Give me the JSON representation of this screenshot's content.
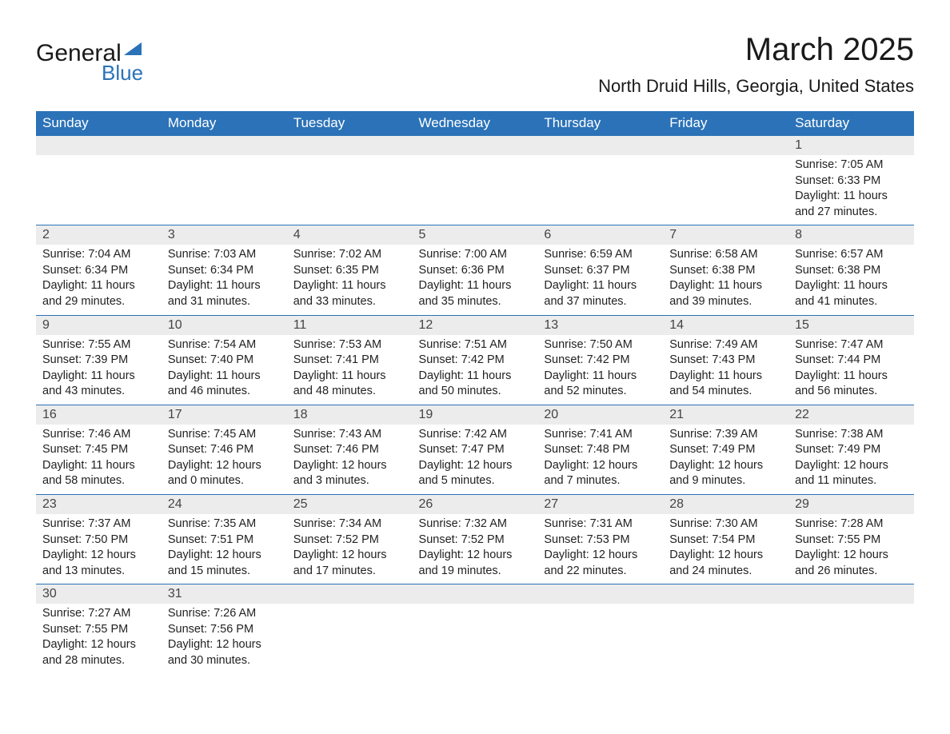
{
  "logo": {
    "text1": "General",
    "text2": "Blue"
  },
  "title": {
    "month": "March 2025",
    "location": "North Druid Hills, Georgia, United States"
  },
  "colors": {
    "header_bg": "#2b72b8",
    "header_text": "#ffffff",
    "daynum_bg": "#ececec",
    "border": "#2b72b8",
    "body_text": "#222222"
  },
  "days_of_week": [
    "Sunday",
    "Monday",
    "Tuesday",
    "Wednesday",
    "Thursday",
    "Friday",
    "Saturday"
  ],
  "weeks": [
    [
      null,
      null,
      null,
      null,
      null,
      null,
      {
        "day": "1",
        "sunrise": "7:05 AM",
        "sunset": "6:33 PM",
        "daylight": "11 hours and 27 minutes."
      }
    ],
    [
      {
        "day": "2",
        "sunrise": "7:04 AM",
        "sunset": "6:34 PM",
        "daylight": "11 hours and 29 minutes."
      },
      {
        "day": "3",
        "sunrise": "7:03 AM",
        "sunset": "6:34 PM",
        "daylight": "11 hours and 31 minutes."
      },
      {
        "day": "4",
        "sunrise": "7:02 AM",
        "sunset": "6:35 PM",
        "daylight": "11 hours and 33 minutes."
      },
      {
        "day": "5",
        "sunrise": "7:00 AM",
        "sunset": "6:36 PM",
        "daylight": "11 hours and 35 minutes."
      },
      {
        "day": "6",
        "sunrise": "6:59 AM",
        "sunset": "6:37 PM",
        "daylight": "11 hours and 37 minutes."
      },
      {
        "day": "7",
        "sunrise": "6:58 AM",
        "sunset": "6:38 PM",
        "daylight": "11 hours and 39 minutes."
      },
      {
        "day": "8",
        "sunrise": "6:57 AM",
        "sunset": "6:38 PM",
        "daylight": "11 hours and 41 minutes."
      }
    ],
    [
      {
        "day": "9",
        "sunrise": "7:55 AM",
        "sunset": "7:39 PM",
        "daylight": "11 hours and 43 minutes."
      },
      {
        "day": "10",
        "sunrise": "7:54 AM",
        "sunset": "7:40 PM",
        "daylight": "11 hours and 46 minutes."
      },
      {
        "day": "11",
        "sunrise": "7:53 AM",
        "sunset": "7:41 PM",
        "daylight": "11 hours and 48 minutes."
      },
      {
        "day": "12",
        "sunrise": "7:51 AM",
        "sunset": "7:42 PM",
        "daylight": "11 hours and 50 minutes."
      },
      {
        "day": "13",
        "sunrise": "7:50 AM",
        "sunset": "7:42 PM",
        "daylight": "11 hours and 52 minutes."
      },
      {
        "day": "14",
        "sunrise": "7:49 AM",
        "sunset": "7:43 PM",
        "daylight": "11 hours and 54 minutes."
      },
      {
        "day": "15",
        "sunrise": "7:47 AM",
        "sunset": "7:44 PM",
        "daylight": "11 hours and 56 minutes."
      }
    ],
    [
      {
        "day": "16",
        "sunrise": "7:46 AM",
        "sunset": "7:45 PM",
        "daylight": "11 hours and 58 minutes."
      },
      {
        "day": "17",
        "sunrise": "7:45 AM",
        "sunset": "7:46 PM",
        "daylight": "12 hours and 0 minutes."
      },
      {
        "day": "18",
        "sunrise": "7:43 AM",
        "sunset": "7:46 PM",
        "daylight": "12 hours and 3 minutes."
      },
      {
        "day": "19",
        "sunrise": "7:42 AM",
        "sunset": "7:47 PM",
        "daylight": "12 hours and 5 minutes."
      },
      {
        "day": "20",
        "sunrise": "7:41 AM",
        "sunset": "7:48 PM",
        "daylight": "12 hours and 7 minutes."
      },
      {
        "day": "21",
        "sunrise": "7:39 AM",
        "sunset": "7:49 PM",
        "daylight": "12 hours and 9 minutes."
      },
      {
        "day": "22",
        "sunrise": "7:38 AM",
        "sunset": "7:49 PM",
        "daylight": "12 hours and 11 minutes."
      }
    ],
    [
      {
        "day": "23",
        "sunrise": "7:37 AM",
        "sunset": "7:50 PM",
        "daylight": "12 hours and 13 minutes."
      },
      {
        "day": "24",
        "sunrise": "7:35 AM",
        "sunset": "7:51 PM",
        "daylight": "12 hours and 15 minutes."
      },
      {
        "day": "25",
        "sunrise": "7:34 AM",
        "sunset": "7:52 PM",
        "daylight": "12 hours and 17 minutes."
      },
      {
        "day": "26",
        "sunrise": "7:32 AM",
        "sunset": "7:52 PM",
        "daylight": "12 hours and 19 minutes."
      },
      {
        "day": "27",
        "sunrise": "7:31 AM",
        "sunset": "7:53 PM",
        "daylight": "12 hours and 22 minutes."
      },
      {
        "day": "28",
        "sunrise": "7:30 AM",
        "sunset": "7:54 PM",
        "daylight": "12 hours and 24 minutes."
      },
      {
        "day": "29",
        "sunrise": "7:28 AM",
        "sunset": "7:55 PM",
        "daylight": "12 hours and 26 minutes."
      }
    ],
    [
      {
        "day": "30",
        "sunrise": "7:27 AM",
        "sunset": "7:55 PM",
        "daylight": "12 hours and 28 minutes."
      },
      {
        "day": "31",
        "sunrise": "7:26 AM",
        "sunset": "7:56 PM",
        "daylight": "12 hours and 30 minutes."
      },
      null,
      null,
      null,
      null,
      null
    ]
  ],
  "labels": {
    "sunrise_prefix": "Sunrise: ",
    "sunset_prefix": "Sunset: ",
    "daylight_prefix": "Daylight: "
  }
}
